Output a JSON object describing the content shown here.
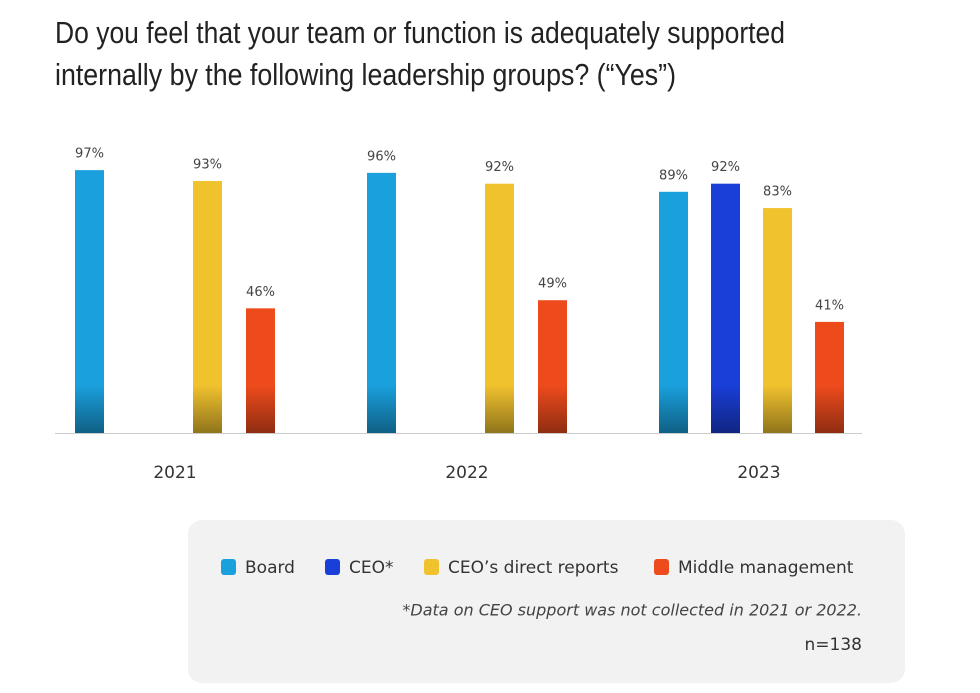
{
  "chart_data": {
    "type": "bar",
    "title": [
      "Do you feel that your team or function is adequately supported",
      "internally by the following leadership groups? (“Yes”)"
    ],
    "categories": [
      "2021",
      "2022",
      "2023"
    ],
    "series": [
      {
        "name": "Board",
        "color": "#1aa0dd",
        "values": [
          97,
          96,
          89
        ],
        "value_labels": [
          "97%",
          "96%",
          "89%"
        ]
      },
      {
        "name": "CEO*",
        "color": "#1a3ed8",
        "values": [
          null,
          null,
          92
        ],
        "value_labels": [
          null,
          null,
          "92%"
        ]
      },
      {
        "name": "CEO’s direct reports",
        "color": "#f0c22e",
        "values": [
          93,
          92,
          83
        ],
        "value_labels": [
          "93%",
          "92%",
          "83%"
        ]
      },
      {
        "name": "Middle management",
        "color": "#ee4b1c",
        "values": [
          46,
          49,
          41
        ],
        "value_labels": [
          "46%",
          "49%",
          "41%"
        ]
      }
    ],
    "footnote": "*Data on CEO support was not collected in 2021 or 2022.",
    "sample": "n=138"
  }
}
